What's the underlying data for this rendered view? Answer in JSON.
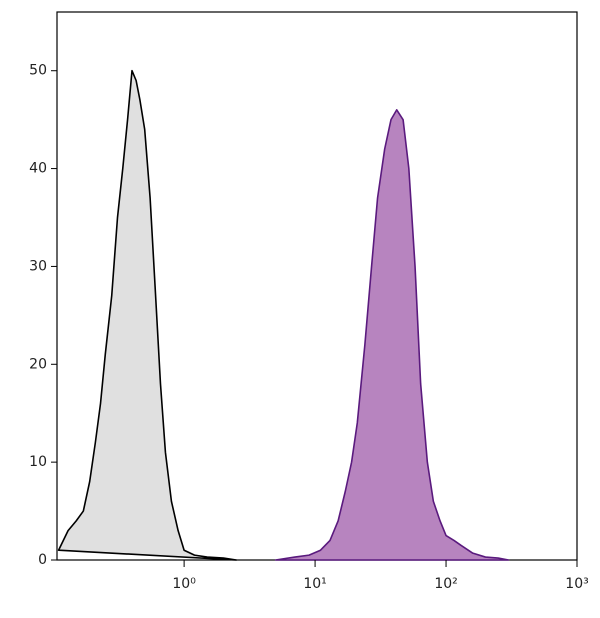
{
  "chart_data": {
    "type": "area",
    "log_x": true,
    "xlim": [
      0.107,
      1000
    ],
    "ylim": [
      0,
      56
    ],
    "xticks": [
      {
        "value": 1,
        "label": "10⁰"
      },
      {
        "value": 10,
        "label": "10¹"
      },
      {
        "value": 100,
        "label": "10²"
      },
      {
        "value": 1000,
        "label": "10³"
      }
    ],
    "yticks": [
      0,
      10,
      20,
      30,
      40,
      50
    ],
    "series": [
      {
        "color": "#000000",
        "fill": "#e0e0e0",
        "x": [
          0.11,
          0.13,
          0.15,
          0.17,
          0.19,
          0.21,
          0.23,
          0.25,
          0.28,
          0.31,
          0.34,
          0.37,
          0.4,
          0.43,
          0.46,
          0.5,
          0.55,
          0.6,
          0.66,
          0.72,
          0.8,
          0.9,
          1.0,
          1.2,
          1.5,
          2.0,
          2.5
        ],
        "values": [
          1,
          3,
          4,
          5,
          8,
          12,
          16,
          21,
          27,
          35,
          40,
          45,
          50,
          49,
          47,
          44,
          37,
          28,
          18,
          11,
          6,
          3,
          1,
          0.5,
          0.3,
          0.2,
          0
        ]
      },
      {
        "color": "#5a1a7e",
        "fill": "#b784bf",
        "x": [
          5,
          7,
          9,
          11,
          13,
          15,
          17,
          19,
          21,
          24,
          27,
          30,
          34,
          38,
          42,
          47,
          52,
          58,
          64,
          72,
          80,
          90,
          100,
          115,
          130,
          160,
          200,
          250,
          300
        ],
        "values": [
          0,
          0.3,
          0.5,
          1,
          2,
          4,
          7,
          10,
          14,
          22,
          30,
          37,
          42,
          45,
          46,
          45,
          40,
          30,
          18,
          10,
          6,
          4,
          2.5,
          2,
          1.5,
          0.7,
          0.3,
          0.2,
          0
        ]
      }
    ]
  }
}
